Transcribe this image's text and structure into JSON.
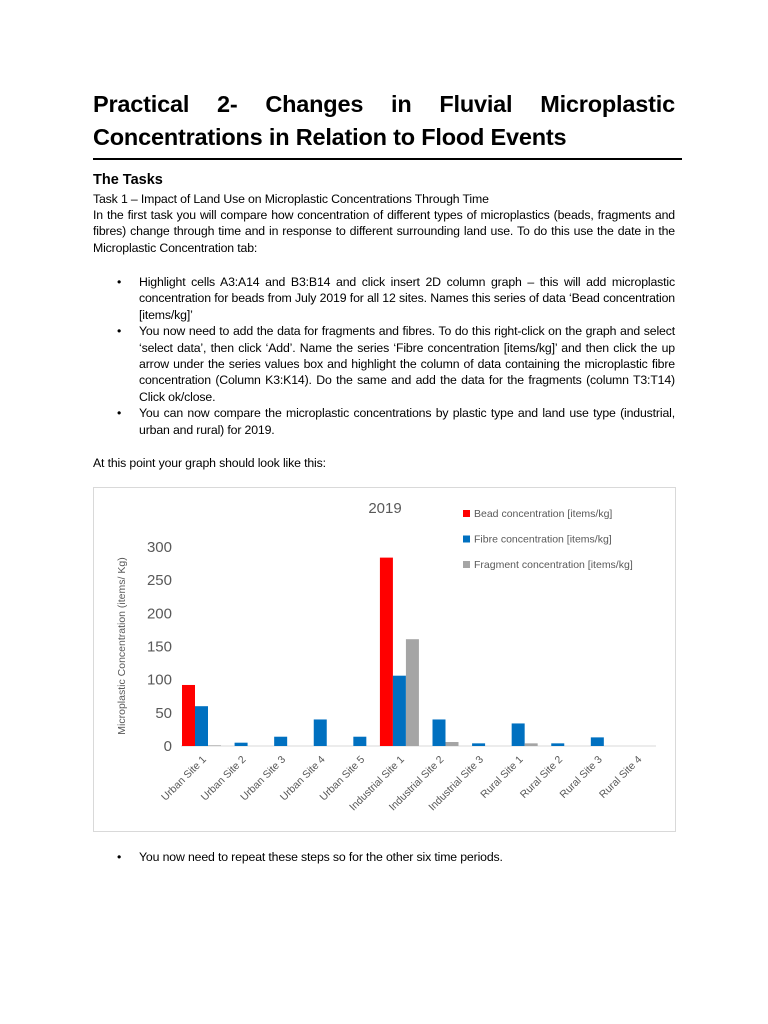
{
  "title_line1_words": [
    "Practical",
    "2-",
    "Changes",
    "in",
    "Fluvial",
    "Microplastic"
  ],
  "title_line2": "Concentrations in Relation to Flood Events",
  "tasks_heading": "The Tasks",
  "task1_heading": "Task 1 – Impact of Land Use on Microplastic Concentrations Through Time",
  "intro": "In the first task you will compare how concentration of different types of microplastics (beads, fragments and fibres) change through time and in response to different surrounding land use.  To do this use the date in the Microplastic Concentration tab:",
  "bullets": [
    "Highlight cells A3:A14 and B3:B14 and click insert 2D column graph – this will add microplastic concentration for beads from July 2019 for all 12 sites. Names this series of data ‘Bead concentration [items/kg]’",
    "You now need to add the data for fragments and fibres.  To do this right-click on the graph and select ‘select data’, then click ‘Add’. Name the series ‘Fibre concentration [items/kg]’ and then click the up arrow under the series values box and highlight the column of data containing the microplastic fibre concentration (Column K3:K14). Do the same and add the data for the fragments (column T3:T14) Click ok/close.",
    "You can now compare the microplastic concentrations by plastic type and land use type (industrial, urban and rural) for 2019."
  ],
  "graph_intro": "At this point your graph should look like this:",
  "final_bullet": "You now need to repeat these steps so for the other six time periods.",
  "chart_data": {
    "type": "bar",
    "title": "2019",
    "ylabel": "Microplastic Concentration (items/ Kg)",
    "xlabel": "",
    "ylim": [
      0,
      300
    ],
    "yticks": [
      "0",
      "50",
      "100",
      "150",
      "200",
      "250",
      "300"
    ],
    "grid": false,
    "legend_position": "top-right",
    "categories": [
      "Urban Site 1",
      "Urban Site 2",
      "Urban Site 3",
      "Urban Site 4",
      "Urban Site 5",
      "Industrial Site 1",
      "Industrial Site 2",
      "Industrial Site 3",
      "Rural Site 1",
      "Rural Site 2",
      "Rural Site 3",
      "Rural Site 4"
    ],
    "series": [
      {
        "name": "Bead concentration [items/kg]",
        "color": "#ff0000",
        "values": [
          92,
          0,
          0,
          0,
          0,
          284,
          0,
          0,
          0,
          0,
          0,
          0
        ]
      },
      {
        "name": "Fibre concentration [items/kg]",
        "color": "#0070c0",
        "values": [
          60,
          5,
          14,
          40,
          14,
          106,
          40,
          4,
          34,
          4,
          13,
          0
        ]
      },
      {
        "name": "Fragment concentration [items/kg]",
        "color": "#a5a5a5",
        "values": [
          1,
          0,
          0,
          0,
          0,
          161,
          6,
          0,
          4,
          0,
          0,
          0
        ]
      }
    ]
  }
}
